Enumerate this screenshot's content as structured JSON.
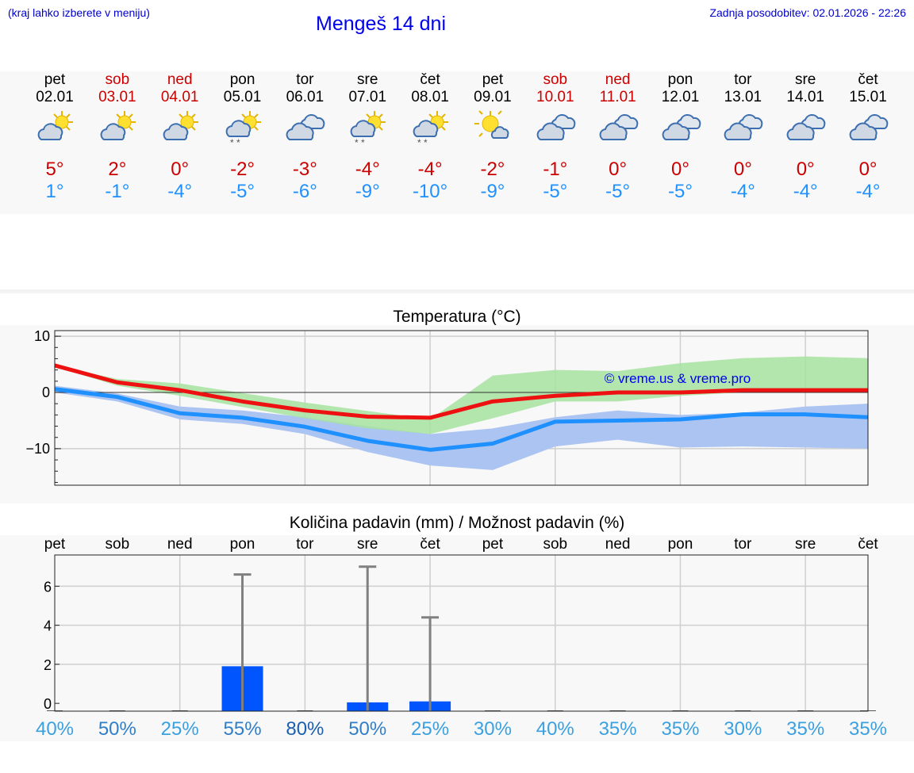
{
  "header": {
    "left_note": "(kraj lahko izberete v meniju)",
    "title": "Mengeš 14 dni",
    "updated": "Zadnja posodobitev: 02.01.2026 - 22:26"
  },
  "days": [
    {
      "name": "pet",
      "date": "02.01",
      "weekend": false,
      "icon": "sun-cloud-icon",
      "tmax": "5°",
      "tmin": "1°"
    },
    {
      "name": "sob",
      "date": "03.01",
      "weekend": true,
      "icon": "sun-cloud-icon",
      "tmax": "2°",
      "tmin": "-1°"
    },
    {
      "name": "ned",
      "date": "04.01",
      "weekend": true,
      "icon": "sun-cloud-icon",
      "tmax": "0°",
      "tmin": "-4°"
    },
    {
      "name": "pon",
      "date": "05.01",
      "weekend": false,
      "icon": "sun-cloud-snow-icon",
      "tmax": "-2°",
      "tmin": "-5°"
    },
    {
      "name": "tor",
      "date": "06.01",
      "weekend": false,
      "icon": "cloud-icon",
      "tmax": "-3°",
      "tmin": "-6°"
    },
    {
      "name": "sre",
      "date": "07.01",
      "weekend": false,
      "icon": "sun-cloud-snow-icon",
      "tmax": "-4°",
      "tmin": "-9°"
    },
    {
      "name": "čet",
      "date": "08.01",
      "weekend": false,
      "icon": "sun-cloud-snow-icon",
      "tmax": "-4°",
      "tmin": "-10°"
    },
    {
      "name": "pet",
      "date": "09.01",
      "weekend": false,
      "icon": "sun-small-cloud-icon",
      "tmax": "-2°",
      "tmin": "-9°"
    },
    {
      "name": "sob",
      "date": "10.01",
      "weekend": true,
      "icon": "cloud-icon",
      "tmax": "-1°",
      "tmin": "-5°"
    },
    {
      "name": "ned",
      "date": "11.01",
      "weekend": true,
      "icon": "cloud-icon",
      "tmax": "0°",
      "tmin": "-5°"
    },
    {
      "name": "pon",
      "date": "12.01",
      "weekend": false,
      "icon": "cloud-icon",
      "tmax": "0°",
      "tmin": "-5°"
    },
    {
      "name": "tor",
      "date": "13.01",
      "weekend": false,
      "icon": "cloud-icon",
      "tmax": "0°",
      "tmin": "-4°"
    },
    {
      "name": "sre",
      "date": "14.01",
      "weekend": false,
      "icon": "cloud-icon",
      "tmax": "0°",
      "tmin": "-4°"
    },
    {
      "name": "čet",
      "date": "15.01",
      "weekend": false,
      "icon": "cloud-icon",
      "tmax": "0°",
      "tmin": "-4°"
    }
  ],
  "colors": {
    "max_line": "#ee1111",
    "min_line": "#1e90ff",
    "max_band": "#a6e3a0",
    "min_band": "#abc4f2",
    "overlap": "#7cc0a8",
    "bar": "#0055ff",
    "error": "#808080",
    "weekend": "#cc0000"
  },
  "chart_data": [
    {
      "type": "line",
      "title": "Temperatura (°C)",
      "watermark": "© vreme.us & vreme.pro",
      "ylim": [
        -16.5,
        11
      ],
      "yticks": [
        10,
        0,
        -10
      ],
      "ytick_labels": [
        "10",
        "0",
        "−10"
      ],
      "x": [
        0,
        1,
        2,
        3,
        4,
        5,
        6,
        7,
        8,
        9,
        10,
        11,
        12,
        13
      ],
      "xlim": [
        0,
        13
      ],
      "series": [
        {
          "name": "max",
          "values": [
            4.8,
            1.8,
            0.4,
            -1.6,
            -3.2,
            -4.3,
            -4.5,
            -1.6,
            -0.6,
            0,
            0,
            0.4,
            0.4,
            0.4
          ]
        },
        {
          "name": "min",
          "values": [
            0.6,
            -0.8,
            -3.7,
            -4.5,
            -6.1,
            -8.6,
            -10.2,
            -9.1,
            -5.2,
            -5,
            -4.8,
            -3.9,
            -3.9,
            -4.4
          ]
        }
      ],
      "max_band": {
        "upper": [
          4.8,
          2.4,
          1.6,
          -0.1,
          -1.8,
          -3.3,
          -4.8,
          3,
          4,
          3.8,
          5.2,
          6.1,
          6.4,
          6.1
        ],
        "lower": [
          4.6,
          1.2,
          -0.6,
          -2.6,
          -4.6,
          -6.4,
          -7.4,
          -4.6,
          -1.6,
          -1.6,
          -0.6,
          0,
          0.4,
          0.2
        ]
      },
      "min_band": {
        "upper": [
          1.2,
          -0.2,
          -2.5,
          -3.2,
          -4.4,
          -6,
          -7.4,
          -6.4,
          -4.4,
          -3.2,
          -4,
          -3.6,
          -2.5,
          -2
        ],
        "lower": [
          0,
          -1.6,
          -4.8,
          -5.6,
          -7.4,
          -10.6,
          -13,
          -13.8,
          -9.6,
          -8.4,
          -9.8,
          -9.6,
          -9.8,
          -10
        ]
      }
    },
    {
      "type": "bar",
      "title": "Količina padavin (mm) / Možnost padavin (%)",
      "categories": [
        "pet",
        "sob",
        "ned",
        "pon",
        "tor",
        "sre",
        "čet",
        "pet",
        "sob",
        "ned",
        "pon",
        "tor",
        "sre",
        "čet"
      ],
      "values": [
        0,
        0,
        0,
        1.9,
        0,
        0.05,
        0.1,
        0,
        0,
        0,
        0,
        0,
        0,
        0
      ],
      "error_max": [
        0,
        0,
        0,
        6.6,
        0,
        7,
        4.4,
        0,
        0,
        0,
        0,
        0,
        0,
        0
      ],
      "ylim": [
        -0.4,
        7.6
      ],
      "yticks": [
        0,
        2,
        4,
        6
      ],
      "ytick_labels": [
        "0",
        "2",
        "4",
        "6"
      ],
      "probability": [
        "40%",
        "50%",
        "25%",
        "55%",
        "80%",
        "50%",
        "25%",
        "30%",
        "40%",
        "35%",
        "35%",
        "30%",
        "35%",
        "35%"
      ],
      "probability_values": [
        40,
        50,
        25,
        55,
        80,
        50,
        25,
        30,
        40,
        35,
        35,
        30,
        35,
        35
      ]
    }
  ]
}
